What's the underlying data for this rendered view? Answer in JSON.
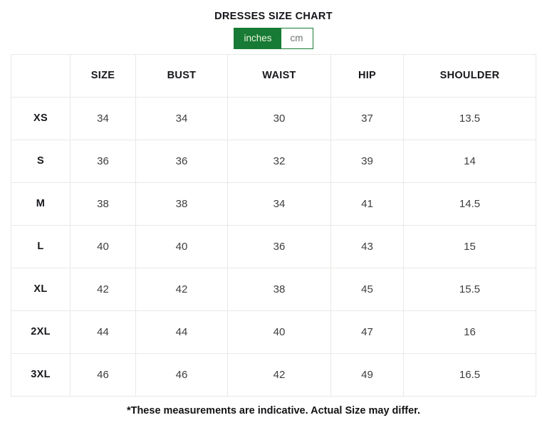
{
  "page": {
    "title": "DRESSES SIZE CHART",
    "footnote": "*These measurements are indicative. Actual Size may differ."
  },
  "unit_toggle": {
    "options": [
      {
        "label": "inches",
        "active": true
      },
      {
        "label": "cm",
        "active": false
      }
    ]
  },
  "colors": {
    "accent_green": "#177a35",
    "active_toggle_text": "#edf6da",
    "inactive_toggle_text": "#6d7472",
    "table_border": "#e8e8e6",
    "header_text": "#17171c",
    "value_text": "#3e3e40"
  },
  "chart_data": {
    "type": "table",
    "title": "DRESSES SIZE CHART",
    "unit": "inches",
    "columns": [
      "",
      "SIZE",
      "BUST",
      "WAIST",
      "HIP",
      "SHOULDER"
    ],
    "rows": [
      {
        "label": "XS",
        "values": [
          "34",
          "34",
          "30",
          "37",
          "13.5"
        ]
      },
      {
        "label": "S",
        "values": [
          "36",
          "36",
          "32",
          "39",
          "14"
        ]
      },
      {
        "label": "M",
        "values": [
          "38",
          "38",
          "34",
          "41",
          "14.5"
        ]
      },
      {
        "label": "L",
        "values": [
          "40",
          "40",
          "36",
          "43",
          "15"
        ]
      },
      {
        "label": "XL",
        "values": [
          "42",
          "42",
          "38",
          "45",
          "15.5"
        ]
      },
      {
        "label": "2XL",
        "values": [
          "44",
          "44",
          "40",
          "47",
          "16"
        ]
      },
      {
        "label": "3XL",
        "values": [
          "46",
          "46",
          "42",
          "49",
          "16.5"
        ]
      }
    ]
  }
}
